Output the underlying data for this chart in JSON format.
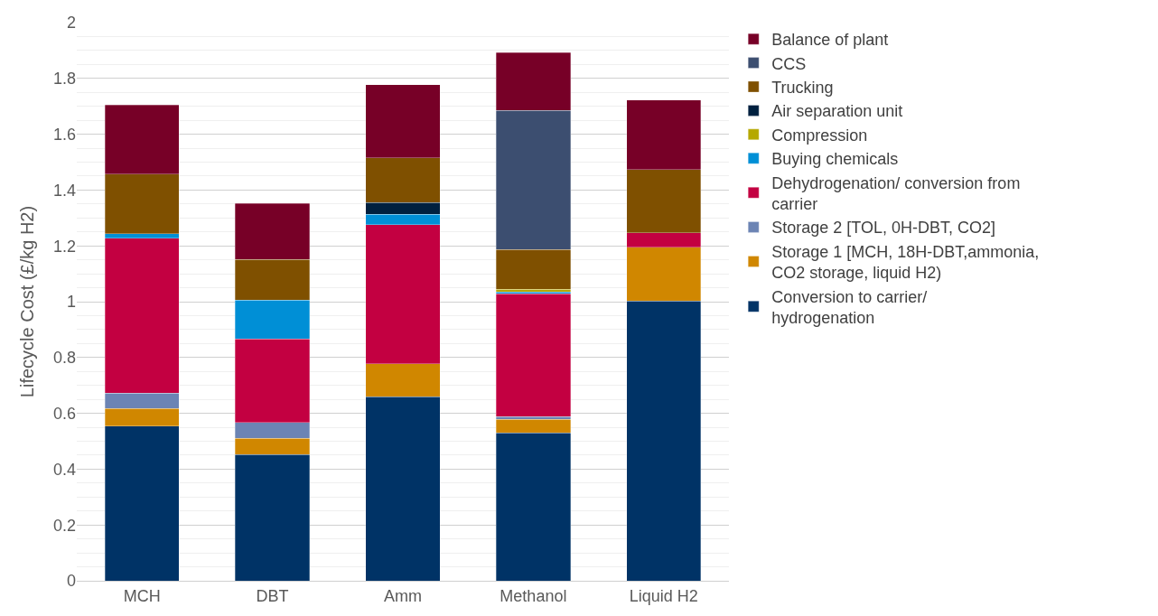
{
  "chart_data": {
    "type": "bar",
    "stacked": true,
    "ylabel": "Lifecycle Cost (£/kg H2)",
    "categories": [
      "MCH",
      "DBT",
      "Amm",
      "Methanol",
      "Liquid H2"
    ],
    "series": [
      {
        "name": "Conversion to carrier/ hydrogenation",
        "color": "#003366",
        "values": [
          0.555,
          0.453,
          0.66,
          0.53,
          1.003
        ]
      },
      {
        "name": "Storage 1 [MCH, 18H-DBT,ammonia, CO2 storage, liquid H2)",
        "color": "#d08700",
        "values": [
          0.062,
          0.057,
          0.118,
          0.048,
          0.192
        ]
      },
      {
        "name": "Storage 2 [TOL, 0H-DBT, CO2]",
        "color": "#6c84b4",
        "values": [
          0.055,
          0.057,
          null,
          0.01,
          null
        ]
      },
      {
        "name": "Dehydrogenation/ conversion from carrier",
        "color": "#c30041",
        "values": [
          0.556,
          0.3,
          0.498,
          0.44,
          0.052
        ]
      },
      {
        "name": "Buying chemicals",
        "color": "#008fd6",
        "values": [
          0.015,
          0.138,
          0.037,
          0.006,
          null
        ]
      },
      {
        "name": "Compression",
        "color": "#b5a800",
        "values": [
          null,
          null,
          null,
          0.011,
          null
        ]
      },
      {
        "name": "Air separation unit",
        "color": "#00203f",
        "values": [
          null,
          null,
          0.043,
          null,
          null
        ]
      },
      {
        "name": "Trucking",
        "color": "#7f5000",
        "values": [
          0.214,
          0.147,
          0.159,
          0.142,
          0.226
        ]
      },
      {
        "name": "CCS",
        "color": "#3c4e70",
        "values": [
          null,
          null,
          null,
          0.498,
          null
        ]
      },
      {
        "name": "Balance of plant",
        "color": "#770027",
        "values": [
          0.248,
          0.2,
          0.263,
          0.208,
          0.249
        ]
      }
    ],
    "ylim": [
      0,
      2
    ],
    "yticks": [
      0,
      0.2,
      0.4,
      0.6,
      0.8,
      1,
      1.2,
      1.4,
      1.6,
      1.8,
      2
    ],
    "grid": "y",
    "legend": "right"
  }
}
